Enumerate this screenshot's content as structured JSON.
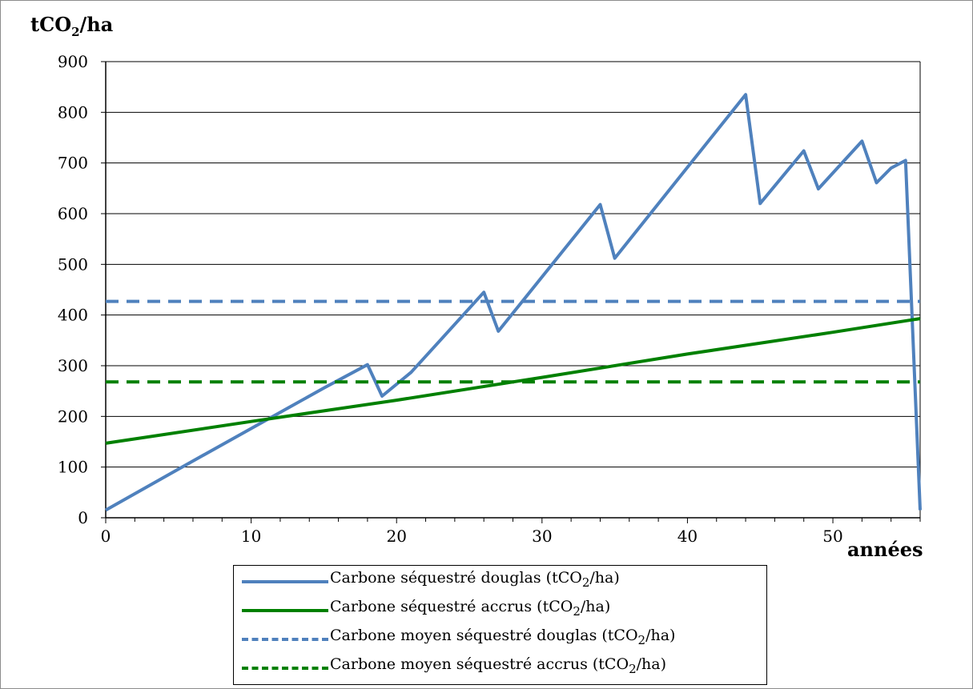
{
  "chart_data": {
    "type": "line",
    "ylabel": "tCO₂/ha",
    "xlabel": "années",
    "xlim": [
      0,
      56
    ],
    "ylim": [
      0,
      900
    ],
    "x_ticks": [
      0,
      10,
      20,
      30,
      40,
      50
    ],
    "y_ticks": [
      0,
      100,
      200,
      300,
      400,
      500,
      600,
      700,
      800,
      900
    ],
    "grid": "horizontal",
    "legend_position": "bottom",
    "series": [
      {
        "name": "Carbone séquestré douglas (tCO₂/ha)",
        "color": "#4f81bd",
        "style": "solid",
        "x": [
          0,
          5,
          10,
          15,
          18,
          19,
          21,
          23,
          26,
          27,
          34,
          35,
          44,
          45,
          48,
          49,
          52,
          53,
          54,
          55,
          56
        ],
        "y": [
          15,
          96,
          176,
          256,
          302,
          240,
          287,
          350,
          445,
          368,
          618,
          512,
          835,
          620,
          724,
          649,
          743,
          661,
          690,
          705,
          15
        ]
      },
      {
        "name": "Carbone séquestré accrus (tCO₂/ha)",
        "color": "#008000",
        "style": "solid",
        "x": [
          0,
          10,
          20,
          30,
          40,
          50,
          56
        ],
        "y": [
          147,
          190,
          232,
          277,
          323,
          366,
          393
        ]
      },
      {
        "name": "Carbone moyen séquestré douglas (tCO₂/ha)",
        "color": "#4f81bd",
        "style": "dashed",
        "x": [
          0,
          56
        ],
        "y": [
          427,
          427
        ]
      },
      {
        "name": "Carbone moyen séquestré accrus (tCO₂/ha)",
        "color": "#008000",
        "style": "dashed",
        "x": [
          0,
          56
        ],
        "y": [
          268,
          268
        ]
      }
    ]
  },
  "labels": {
    "y_main": "tCO",
    "y_sub": "2",
    "y_tail": "/ha",
    "x_axis": "années"
  },
  "legend": [
    {
      "pre": "Carbone séquestré douglas (tCO",
      "sub": "2",
      "post": "/ha)"
    },
    {
      "pre": "Carbone séquestré accrus (tCO",
      "sub": "2",
      "post": "/ha)"
    },
    {
      "pre": "Carbone moyen séquestré douglas (tCO",
      "sub": "2",
      "post": "/ha)"
    },
    {
      "pre": "Carbone moyen séquestré accrus (tCO",
      "sub": "2",
      "post": "/ha)"
    }
  ]
}
